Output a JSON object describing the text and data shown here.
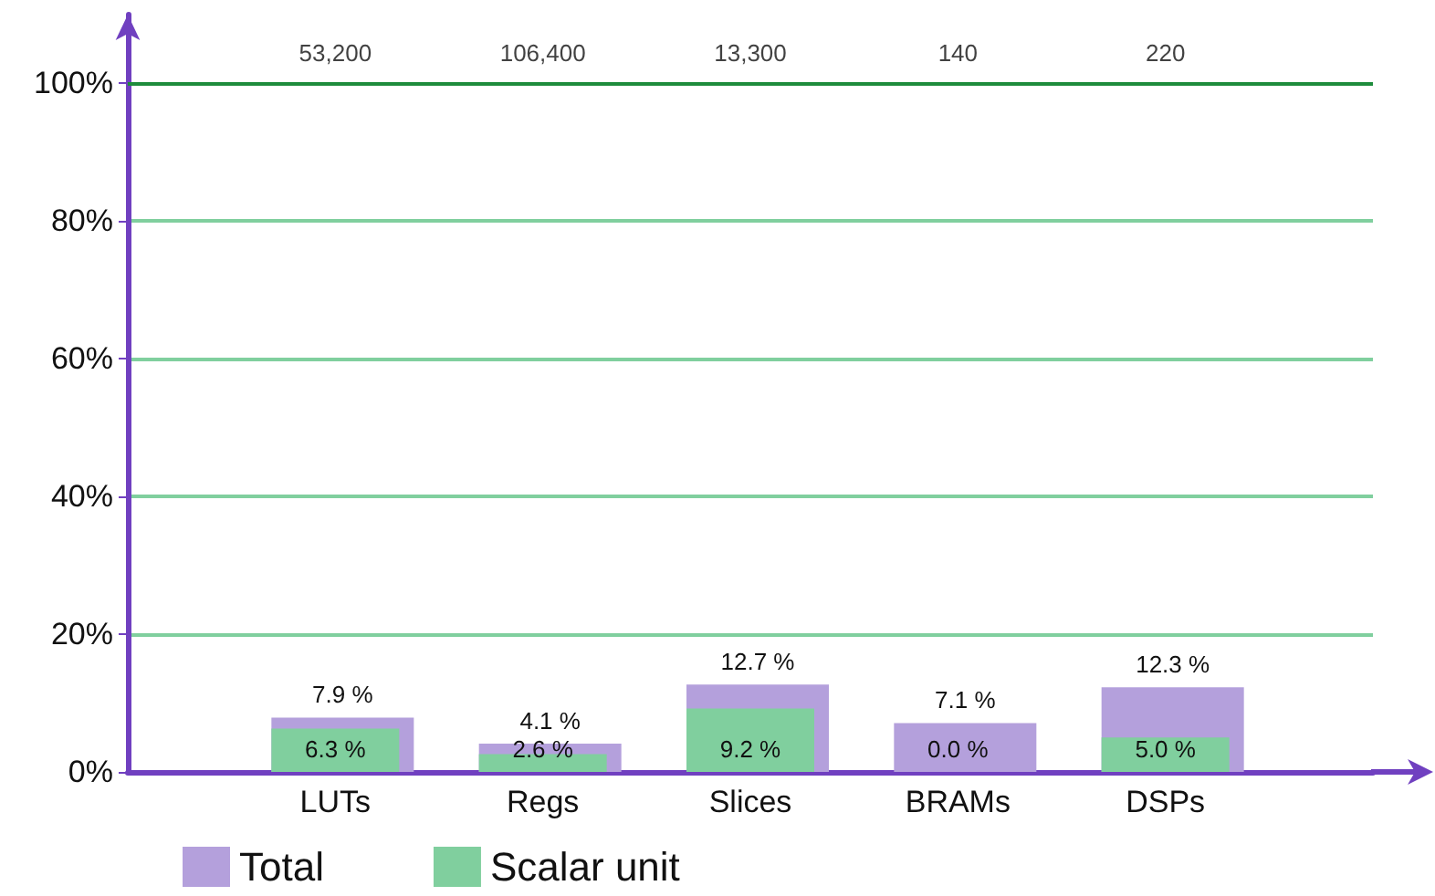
{
  "chart_data": {
    "type": "bar",
    "categories": [
      "LUTs",
      "Regs",
      "Slices",
      "BRAMs",
      "DSPs"
    ],
    "series": [
      {
        "name": "Total",
        "color": "#b4a0dc",
        "values": [
          7.9,
          4.1,
          12.7,
          7.1,
          12.3
        ],
        "value_labels": [
          "7.9 %",
          "4.1 %",
          "12.7 %",
          "7.1 %",
          "12.3 %"
        ]
      },
      {
        "name": "Scalar unit",
        "color": "#80cf9e",
        "values": [
          6.3,
          2.6,
          9.2,
          0.0,
          5.0
        ],
        "value_labels": [
          "6.3 %",
          "2.6 %",
          "9.2 %",
          "0.0 %",
          "5.0 %"
        ]
      }
    ],
    "ylim": [
      0,
      110
    ],
    "yticks": [
      {
        "value": 0,
        "label": "0%"
      },
      {
        "value": 20,
        "label": "20%"
      },
      {
        "value": 40,
        "label": "40%"
      },
      {
        "value": 60,
        "label": "60%"
      },
      {
        "value": 80,
        "label": "80%"
      },
      {
        "value": 100,
        "label": "100%"
      }
    ],
    "ref_lines": [
      {
        "axis": "y",
        "value": 100,
        "label": null,
        "color": "#1e8c3c"
      }
    ],
    "annotations": [
      "53,200",
      "106,400",
      "13,300",
      "140",
      "220"
    ],
    "grid": "y",
    "legend": "bottom left"
  }
}
